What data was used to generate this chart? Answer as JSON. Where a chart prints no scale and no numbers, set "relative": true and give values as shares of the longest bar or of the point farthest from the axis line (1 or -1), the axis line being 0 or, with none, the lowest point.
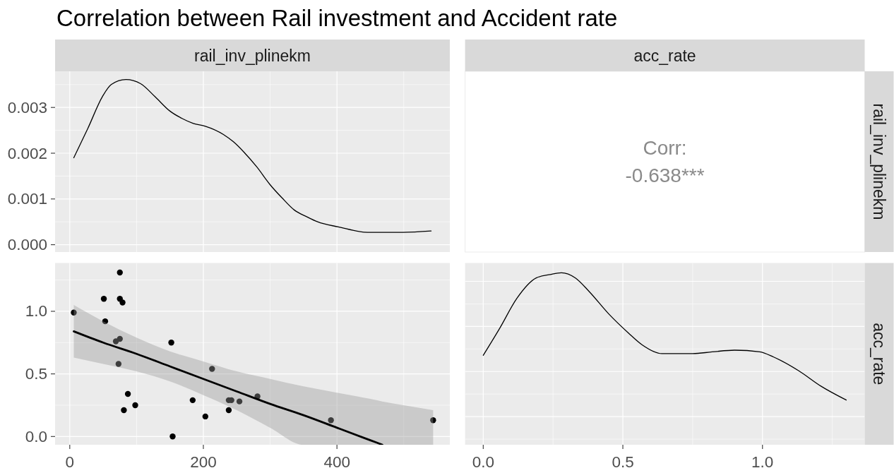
{
  "chart_data": [
    {
      "type": "line",
      "title": "Correlation between Rail investment and Accident rate",
      "xlabel": "rail_inv_plinekm",
      "x": [
        6,
        27,
        49,
        62,
        84,
        106,
        128,
        150,
        168,
        185,
        203,
        230,
        245,
        261,
        280,
        300,
        318,
        336,
        355,
        371,
        402,
        446,
        499,
        541
      ],
      "series": [
        {
          "color": "#000000",
          "values": [
            0.0019,
            0.00254,
            0.00324,
            0.0035,
            0.00361,
            0.00352,
            0.00323,
            0.00292,
            0.00276,
            0.00265,
            0.00259,
            0.00241,
            0.00225,
            0.00202,
            0.0017,
            0.00131,
            0.00102,
            0.00076,
            0.00061,
            0.0005,
            0.00039,
            0.00027,
            0.00027,
            0.0003
          ]
        }
      ],
      "xlim": [
        -22,
        569
      ],
      "ylim": [
        -0.00016,
        0.00379
      ],
      "xticks": [
        0,
        {
          "value": 100,
          "label": null
        },
        200,
        {
          "value": 300,
          "label": null
        },
        400,
        {
          "value": 500,
          "label": null
        }
      ],
      "yticks": [
        {
          "value": 0,
          "label": "0.000"
        },
        {
          "value": 0.0005,
          "label": null
        },
        {
          "value": 0.001,
          "label": "0.001"
        },
        {
          "value": 0.0015,
          "label": null
        },
        {
          "value": 0.002,
          "label": "0.002"
        },
        {
          "value": 0.0025,
          "label": null
        },
        {
          "value": 0.003,
          "label": "0.003"
        },
        {
          "value": 0.0035,
          "label": null
        }
      ],
      "grid": true,
      "tick_labels": "y"
    },
    {
      "type": "other",
      "xlabel": "acc_rate",
      "ylabel": "rail_inv_plinekm",
      "annotations": [
        "Corr:",
        "-0.638***"
      ]
    },
    {
      "type": "scatter",
      "series": [
        {
          "color": "#000000",
          "marker": "circle",
          "x": [
            6,
            75,
            51,
            75,
            79,
            53,
            69,
            75,
            73,
            152,
            87,
            81,
            98,
            184,
            203,
            154,
            213,
            238,
            242,
            238,
            254,
            281,
            391,
            544
          ],
          "values": [
            0.99,
            1.31,
            1.1,
            1.1,
            1.07,
            0.92,
            0.76,
            0.78,
            0.58,
            0.75,
            0.34,
            0.21,
            0.25,
            0.29,
            0.16,
            0,
            0.54,
            0.29,
            0.29,
            0.21,
            0.28,
            0.32,
            0.13,
            0.13
          ]
        },
        {
          "type": "line",
          "color": "#000000",
          "x": [
            6,
            50,
            100,
            150,
            200,
            250,
            300,
            350,
            400,
            450,
            468,
            500,
            544
          ],
          "values": [
            0.84,
            0.75,
            0.66,
            0.56,
            0.46,
            0.36,
            0.26,
            0.17,
            0.07,
            -0.03,
            -0.066,
            null,
            null
          ],
          "lower": [
            0.63,
            0.58,
            0.52,
            0.44,
            0.33,
            0.21,
            0.07,
            -0.066,
            -0.066,
            -0.066,
            -0.066,
            -0.066,
            -0.066
          ],
          "upper": [
            1.05,
            0.92,
            0.79,
            0.68,
            0.6,
            0.52,
            0.46,
            0.4,
            0.35,
            0.3,
            0.28,
            0.25,
            0.21
          ]
        }
      ],
      "xlim": [
        -22,
        569
      ],
      "ylim": [
        -0.066,
        1.386
      ],
      "xticks": [
        0,
        {
          "value": 100,
          "label": null
        },
        200,
        {
          "value": 300,
          "label": null
        },
        400,
        {
          "value": 500,
          "label": null
        }
      ],
      "yticks": [
        {
          "value": 0,
          "label": "0.0"
        },
        {
          "value": 0.25,
          "label": null
        },
        {
          "value": 0.5,
          "label": "0.5"
        },
        {
          "value": 0.75,
          "label": null
        },
        {
          "value": 1,
          "label": "1.0"
        },
        {
          "value": 1.25,
          "label": null
        }
      ],
      "grid": true
    },
    {
      "type": "line",
      "ylabel": "acc_rate",
      "relative": true,
      "x": [
        0,
        0.06,
        0.12,
        0.19,
        0.24,
        0.28,
        0.33,
        0.38,
        0.45,
        0.52,
        0.57,
        0.64,
        0.75,
        0.82,
        0.9,
        0.99,
        1.04,
        1.13,
        1.21,
        1.3
      ],
      "series": [
        {
          "color": "#000000",
          "values": [
            0.52,
            0.68,
            0.85,
            0.97,
            0.99,
            1,
            0.97,
            0.89,
            0.76,
            0.65,
            0.58,
            0.53,
            0.53,
            0.54,
            0.55,
            0.54,
            0.51,
            0.43,
            0.34,
            0.26
          ]
        }
      ],
      "xlim": [
        -0.065,
        1.366
      ],
      "xticks": [
        {
          "value": 0,
          "label": "0.0"
        },
        {
          "value": 0.25,
          "label": null
        },
        {
          "value": 0.5,
          "label": "0.5"
        },
        {
          "value": 0.75,
          "label": null
        },
        {
          "value": 1,
          "label": "1.0"
        },
        {
          "value": 1.25,
          "label": null
        }
      ],
      "grid": true
    }
  ]
}
